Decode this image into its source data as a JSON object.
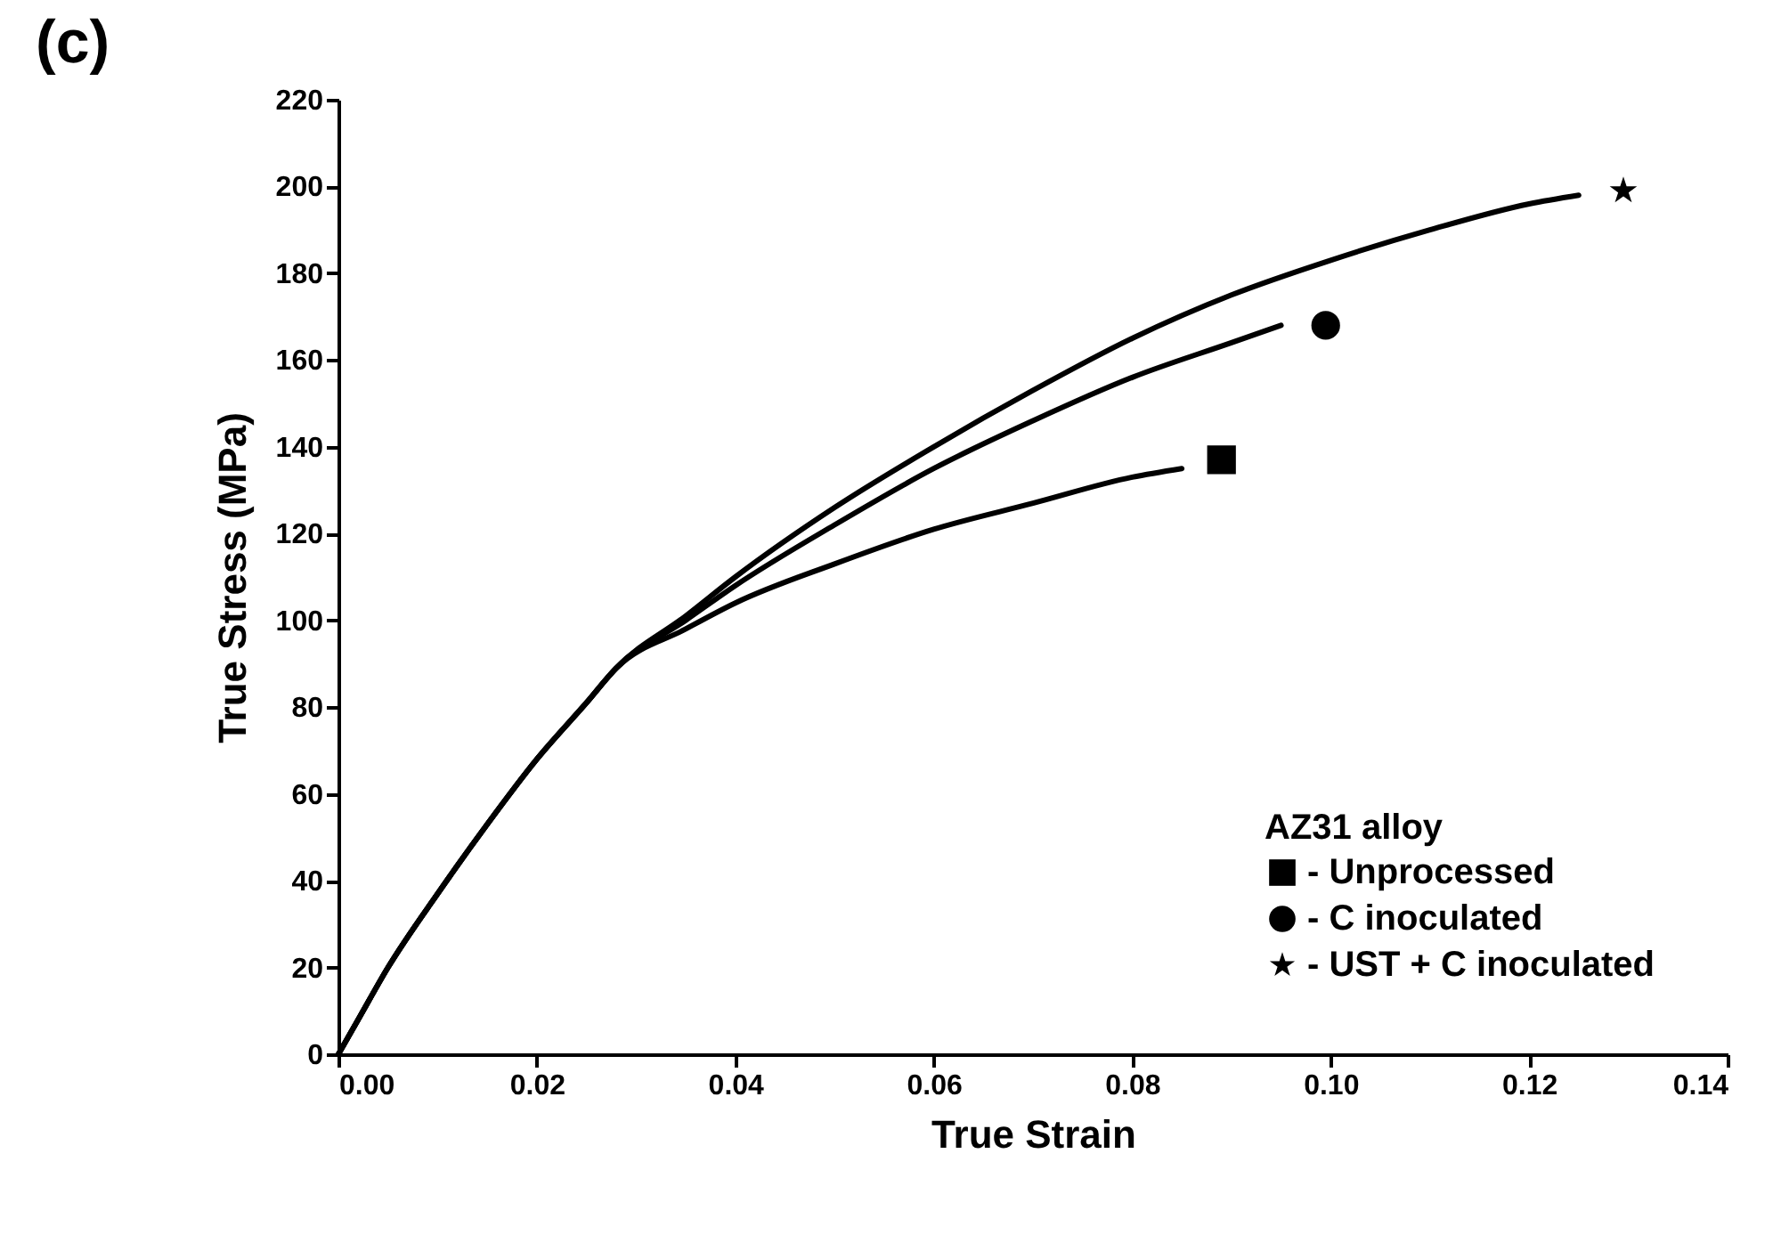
{
  "chart_data": {
    "type": "line",
    "annotations": [
      "(c)"
    ],
    "xlabel": "True Strain",
    "ylabel": "True Stress (MPa)",
    "legend_title": "AZ31 alloy",
    "legend": "bottom right",
    "grid": false,
    "line_style": "solid",
    "xlim": [
      0,
      0.14
    ],
    "xticks": [
      {
        "value": 0,
        "label": "0.00"
      },
      {
        "value": 0.02,
        "label": "0.02"
      },
      {
        "value": 0.04,
        "label": "0.04"
      },
      {
        "value": 0.06,
        "label": "0.06"
      },
      {
        "value": 0.08,
        "label": "0.08"
      },
      {
        "value": 0.1,
        "label": "0.10"
      },
      {
        "value": 0.12,
        "label": "0.12"
      },
      {
        "value": 0.14,
        "label": "0.14"
      }
    ],
    "ylim": [
      0,
      220
    ],
    "yticks": [
      0,
      20,
      40,
      60,
      80,
      100,
      120,
      140,
      160,
      180,
      200,
      220
    ],
    "series": [
      {
        "color": "#000000",
        "x": [
          0,
          0.002,
          0.005,
          0.01,
          0.015,
          0.02,
          0.025,
          0.028,
          0.035,
          0.04,
          0.05,
          0.06,
          0.07,
          0.08,
          0.085
        ],
        "values": [
          0,
          8,
          20,
          37,
          53,
          68,
          81,
          89,
          98,
          104,
          113,
          121,
          127,
          133,
          135
        ]
      },
      {
        "color": "#000000",
        "x": [
          0,
          0.002,
          0.005,
          0.01,
          0.015,
          0.02,
          0.025,
          0.028,
          0.035,
          0.04,
          0.05,
          0.06,
          0.07,
          0.08,
          0.09,
          0.095
        ],
        "values": [
          0,
          8,
          20,
          37,
          53,
          68,
          81,
          89,
          100,
          108,
          122,
          135,
          146,
          156,
          164,
          168
        ]
      },
      {
        "color": "#000000",
        "x": [
          0,
          0.002,
          0.005,
          0.01,
          0.015,
          0.02,
          0.025,
          0.028,
          0.035,
          0.04,
          0.05,
          0.06,
          0.07,
          0.08,
          0.09,
          0.1,
          0.11,
          0.12,
          0.125
        ],
        "values": [
          0,
          8,
          20,
          37,
          53,
          68,
          81,
          89,
          101,
          110,
          126,
          140,
          153,
          165,
          175,
          183,
          190,
          196,
          198
        ]
      },
      {
        "type": "scatter",
        "name": "- Unprocessed",
        "marker": "square",
        "color": "#000000",
        "x": [
          0.089
        ],
        "values": [
          137
        ]
      },
      {
        "type": "scatter",
        "name": "- C inoculated",
        "marker": "circle",
        "color": "#000000",
        "x": [
          0.0995
        ],
        "values": [
          168
        ]
      },
      {
        "type": "scatter",
        "name": "- UST + C inoculated",
        "marker": "star",
        "color": "#000000",
        "x": [
          0.1295
        ],
        "values": [
          199
        ]
      }
    ]
  }
}
